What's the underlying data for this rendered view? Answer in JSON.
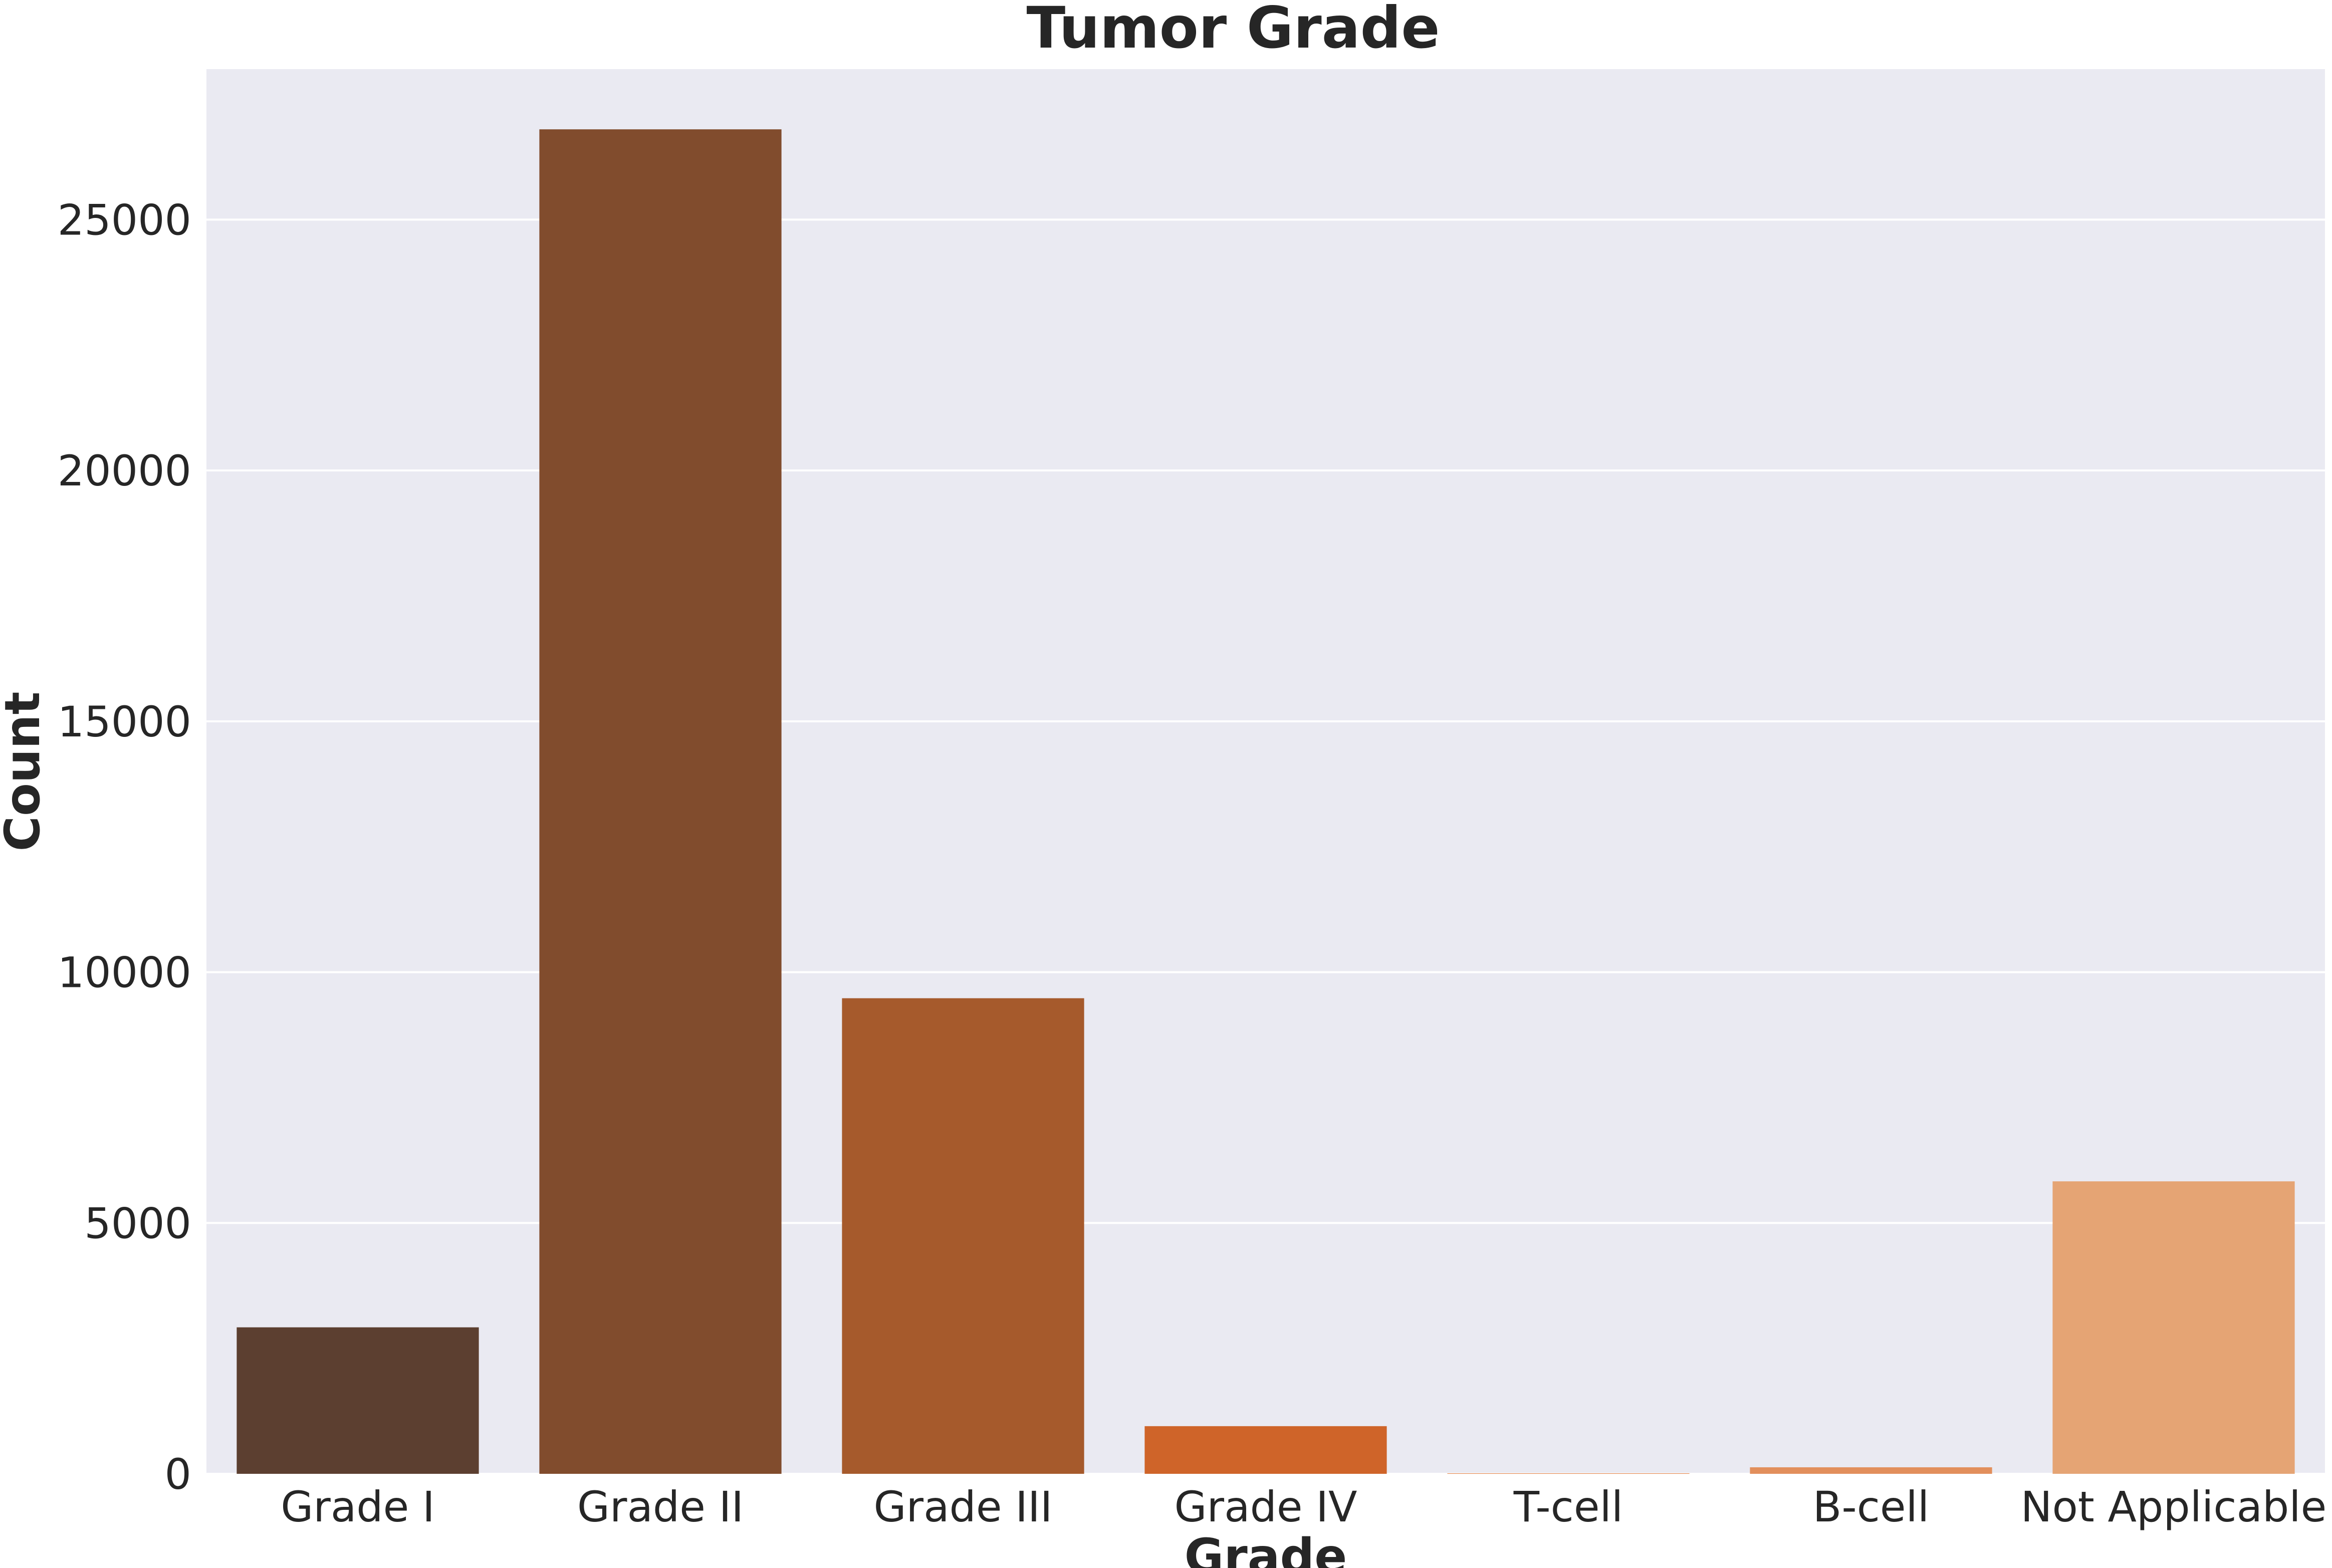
{
  "chart_data": {
    "type": "bar",
    "title": "Tumor Grade",
    "xlabel": "Grade",
    "ylabel": "Count",
    "categories": [
      "Grade I",
      "Grade II",
      "Grade III",
      "Grade IV",
      "T-cell",
      "B-cell",
      "Not Applicable"
    ],
    "values": [
      2920,
      26800,
      9480,
      950,
      10,
      130,
      5830
    ],
    "colors": [
      "#5c3f30",
      "#814c2d",
      "#a65a2c",
      "#cf6429",
      "#e17b3f",
      "#e28f5c",
      "#e5a474"
    ],
    "ylim": [
      0,
      28000
    ],
    "yticks": [
      0,
      5000,
      10000,
      15000,
      20000,
      25000
    ],
    "grid": true,
    "legend": "none",
    "background": "#eaeaf2",
    "grid_color": "#ffffff"
  }
}
